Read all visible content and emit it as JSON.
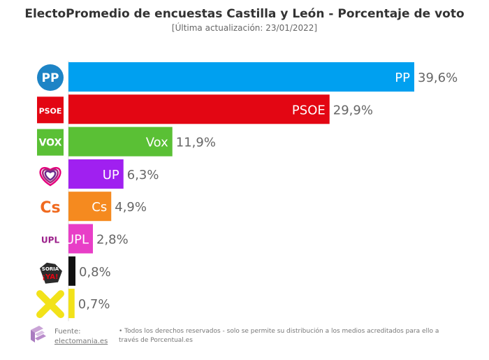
{
  "chart_data": {
    "type": "bar",
    "orientation": "horizontal",
    "title": "ElectoPromedio de encuestas Castilla y León - Porcentaje de voto",
    "subtitle": "[Última actualización: 23/01/2022]",
    "categories": [
      "PP",
      "PSOE",
      "Vox",
      "UP",
      "Cs",
      "UPL",
      "",
      ""
    ],
    "values": [
      39.6,
      29.9,
      11.9,
      6.3,
      4.9,
      2.8,
      0.8,
      0.7
    ],
    "value_labels": [
      "39,6%",
      "29,9%",
      "11,9%",
      "6,3%",
      "4,9%",
      "2,8%",
      "0,8%",
      "0,7%"
    ],
    "colors": [
      "#00a0f0",
      "#e30613",
      "#5ac035",
      "#a020f0",
      "#f58a1f",
      "#e83ec7",
      "#111111",
      "#f2e21a"
    ],
    "xlim": [
      0,
      40
    ]
  },
  "logos": [
    {
      "icon": "pp-logo",
      "text": "PP",
      "bg": "#1d84c6",
      "fg": "#ffffff"
    },
    {
      "icon": "psoe-logo",
      "text": "PSOE",
      "bg": "#e30613",
      "fg": "#ffffff"
    },
    {
      "icon": "vox-logo",
      "text": "VOX",
      "bg": "#5ac035",
      "fg": "#ffffff"
    },
    {
      "icon": "up-heart-logo",
      "text": "",
      "bg": "#ffffff",
      "fg": "#a3277a"
    },
    {
      "icon": "cs-logo",
      "text": "Cs",
      "bg": "#ffffff",
      "fg": "#f06a1f"
    },
    {
      "icon": "upl-logo",
      "text": "UPL",
      "bg": "#ffffff",
      "fg": "#9b1f8a"
    },
    {
      "icon": "soria-ya-logo",
      "text": "SORIA ¡YA!",
      "bg": "#ffffff",
      "fg": "#111111"
    },
    {
      "icon": "x-cross-logo",
      "text": "",
      "bg": "#ffffff",
      "fg": "#f2e21a"
    }
  ],
  "footer": {
    "source_label": "Fuente:",
    "source_link": "electomania.es",
    "note": "• Todos los derechos reservados - solo se permite su distribución a los medios acreditados para ello a través de Porcentual.es"
  }
}
